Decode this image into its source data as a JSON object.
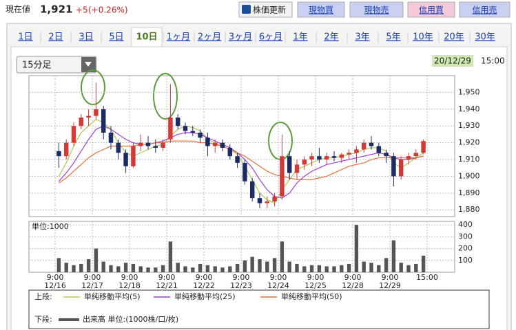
{
  "header": {
    "label": "現在値",
    "price": "1,921",
    "change": "+5",
    "change_pct": "(+0.26%)"
  },
  "buttons": [
    "株価更新",
    "現物買",
    "現物売",
    "信用買",
    "信用売"
  ],
  "tabs": [
    "1日",
    "2日",
    "3日",
    "5日",
    "10日",
    "1ヶ月",
    "2ヶ月",
    "3ヶ月",
    "6ヶ月",
    "1年",
    "2年",
    "3年",
    "5年",
    "10年",
    "20年",
    "30年"
  ],
  "active_tab": "10日",
  "interval": "15分足",
  "date": "20/12/29",
  "time": "15:00",
  "chart_data": [
    {
      "type": "candlestick",
      "legend_prefix": "上段:",
      "up_color": "#d23a3a",
      "down_color": "#1c2a66",
      "open": [
        1915,
        1912,
        1920,
        1930,
        1935,
        1936,
        1940,
        1926,
        1920,
        1914,
        1906,
        1918,
        1920,
        1918,
        1917,
        1922,
        1935,
        1930,
        1927,
        1926,
        1923,
        1918,
        1920,
        1917,
        1912,
        1908,
        1897,
        1887,
        1884,
        1885,
        1888,
        1912,
        1902,
        1907,
        1910,
        1912,
        1910,
        1912,
        1911,
        1913,
        1914,
        1916,
        1920,
        1918,
        1914,
        1912,
        1900,
        1910,
        1912,
        1914
      ],
      "high": [
        1920,
        1922,
        1932,
        1937,
        1940,
        1956,
        1942,
        1930,
        1922,
        1916,
        1920,
        1925,
        1924,
        1922,
        1922,
        1955,
        1937,
        1932,
        1930,
        1928,
        1926,
        1922,
        1922,
        1919,
        1914,
        1910,
        1899,
        1890,
        1888,
        1890,
        1925,
        1915,
        1910,
        1912,
        1914,
        1917,
        1914,
        1915,
        1914,
        1916,
        1918,
        1922,
        1924,
        1920,
        1916,
        1914,
        1912,
        1914,
        1916,
        1922
      ],
      "low": [
        1905,
        1910,
        1918,
        1928,
        1930,
        1934,
        1922,
        1916,
        1910,
        1902,
        1905,
        1915,
        1916,
        1914,
        1915,
        1920,
        1928,
        1925,
        1924,
        1920,
        1912,
        1914,
        1915,
        1910,
        1905,
        1895,
        1885,
        1881,
        1881,
        1882,
        1886,
        1898,
        1898,
        1904,
        1906,
        1908,
        1907,
        1909,
        1908,
        1910,
        1908,
        1914,
        1916,
        1912,
        1908,
        1894,
        1898,
        1907,
        1910,
        1913
      ],
      "close": [
        1912,
        1920,
        1930,
        1935,
        1936,
        1940,
        1926,
        1920,
        1914,
        1906,
        1918,
        1920,
        1918,
        1917,
        1920,
        1935,
        1930,
        1927,
        1926,
        1923,
        1918,
        1920,
        1917,
        1912,
        1908,
        1897,
        1887,
        1884,
        1885,
        1888,
        1912,
        1902,
        1907,
        1910,
        1912,
        1910,
        1912,
        1911,
        1913,
        1914,
        1916,
        1920,
        1918,
        1914,
        1912,
        1900,
        1910,
        1912,
        1914,
        1921
      ],
      "series": [
        {
          "name": "単純移動平均(5)",
          "color": "#a8c850",
          "values": [
            1900,
            1908,
            1918,
            1926,
            1930,
            1934,
            1932,
            1928,
            1920,
            1914,
            1912,
            1914,
            1916,
            1918,
            1919,
            1924,
            1928,
            1930,
            1929,
            1927,
            1922,
            1920,
            1918,
            1916,
            1913,
            1906,
            1898,
            1890,
            1886,
            1884,
            1892,
            1898,
            1904,
            1906,
            1908,
            1910,
            1911,
            1911,
            1912,
            1913,
            1914,
            1916,
            1917,
            1917,
            1915,
            1908,
            1905,
            1908,
            1911,
            1914
          ]
        },
        {
          "name": "単純移動平均(25)",
          "color": "#9b3fd0",
          "values": [
            1897,
            1902,
            1908,
            1915,
            1922,
            1928,
            1930,
            1928,
            1925,
            1922,
            1920,
            1919,
            1919,
            1920,
            1921,
            1923,
            1925,
            1926,
            1926,
            1925,
            1923,
            1921,
            1919,
            1917,
            1914,
            1910,
            1905,
            1898,
            1892,
            1888,
            1887,
            1890,
            1896,
            1900,
            1903,
            1905,
            1907,
            1908,
            1909,
            1910,
            1911,
            1912,
            1913,
            1914,
            1913,
            1911,
            1910,
            1910,
            1911,
            1912
          ]
        },
        {
          "name": "単純移動平均(50)",
          "color": "#e0703a",
          "values": [
            1896,
            1899,
            1903,
            1907,
            1911,
            1914,
            1916,
            1918,
            1918,
            1918,
            1918,
            1919,
            1919,
            1920,
            1920,
            1921,
            1921,
            1921,
            1921,
            1920,
            1920,
            1919,
            1918,
            1916,
            1914,
            1912,
            1909,
            1906,
            1903,
            1901,
            1900,
            1899,
            1898,
            1898,
            1898,
            1899,
            1900,
            1902,
            1904,
            1906,
            1907,
            1908,
            1910,
            1911,
            1911,
            1911,
            1911,
            1911,
            1911,
            1912
          ]
        }
      ],
      "x_labels": [
        {
          "time": "9:00",
          "date": "12/16"
        },
        {
          "time": "9:00",
          "date": "12/17"
        },
        {
          "time": "9:00",
          "date": "12/18"
        },
        {
          "time": "9:00",
          "date": "12/21"
        },
        {
          "time": "9:00",
          "date": "12/22"
        },
        {
          "time": "9:00",
          "date": "12/23"
        },
        {
          "time": "9:00",
          "date": "12/24"
        },
        {
          "time": "9:00",
          "date": "12/25"
        },
        {
          "time": "9:00",
          "date": "12/28"
        },
        {
          "time": "9:00",
          "date": "12/29"
        },
        {
          "time": "15:00"
        }
      ],
      "ylim": [
        1876,
        1960
      ],
      "yticks": [
        {
          "value": 1880,
          "label": "1,880"
        },
        {
          "value": 1890,
          "label": "1,890"
        },
        {
          "value": 1900,
          "label": "1,900"
        },
        {
          "value": 1910,
          "label": "1,910"
        },
        {
          "value": 1920,
          "label": "1,920"
        },
        {
          "value": 1930,
          "label": "1,930"
        },
        {
          "value": 1940,
          "label": "1,940"
        },
        {
          "value": 1950,
          "label": "1,950"
        }
      ],
      "grid": true
    },
    {
      "type": "bar",
      "unit_label": "単位:1000",
      "legend_prefix": "下段:",
      "legend_label": "出来高 単位:(1000株/口/枚)",
      "color": "#555555",
      "values": [
        120,
        80,
        60,
        70,
        110,
        200,
        90,
        60,
        50,
        80,
        70,
        50,
        40,
        40,
        60,
        260,
        80,
        50,
        40,
        70,
        60,
        50,
        40,
        50,
        70,
        100,
        130,
        110,
        90,
        120,
        260,
        90,
        70,
        50,
        60,
        60,
        50,
        50,
        60,
        70,
        400,
        90,
        80,
        60,
        120,
        270,
        80,
        60,
        70,
        140
      ],
      "ylim": [
        0,
        430
      ],
      "yticks": [
        100,
        200,
        300,
        400
      ],
      "grid": true
    }
  ]
}
